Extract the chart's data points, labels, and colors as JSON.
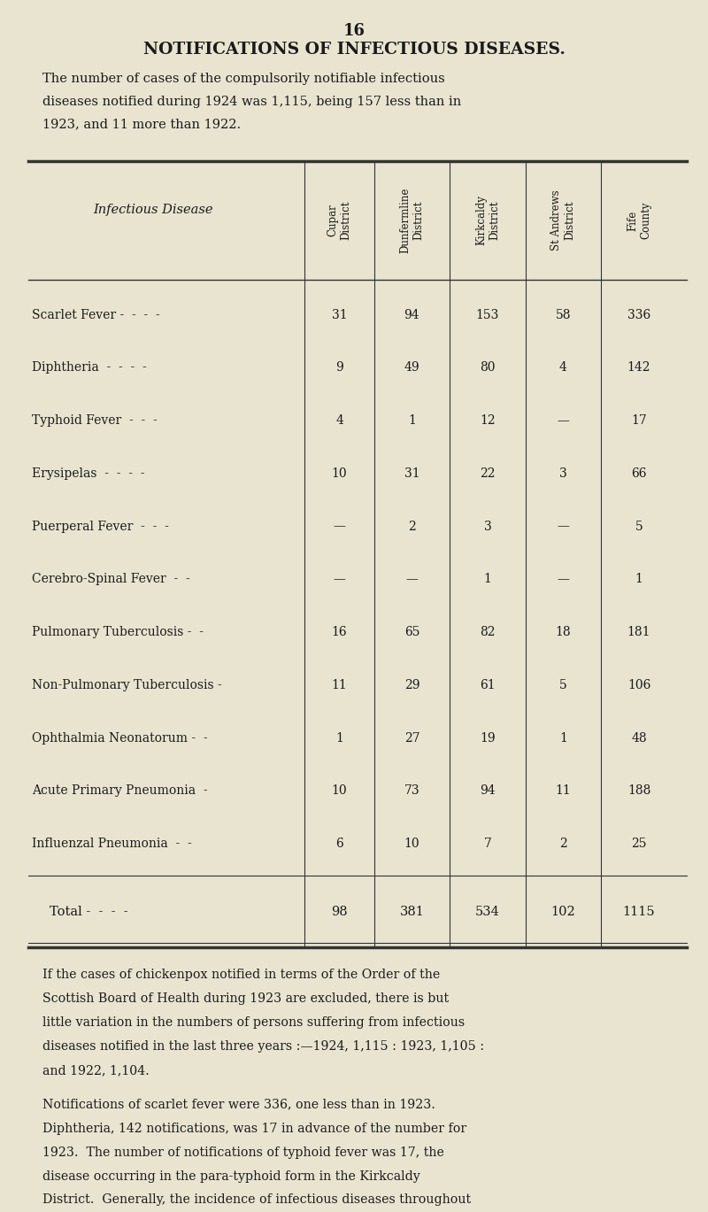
{
  "page_number": "16",
  "title": "NOTIFICATIONS OF INFECTIOUS DISEASES.",
  "intro_text": "The number of cases of the compulsorily notifiable infectious\ndiseases notified during 1924 was 1,115, being 157 less than in\n1923, and 11 more than 1922.",
  "col_headers": [
    "Infectious Disease",
    "Cupar\nDistrict",
    "Dunfermline\nDistrict",
    "Kirkcaldy\nDistrict",
    "St Andrews\nDistrict",
    "Fife\nCounty"
  ],
  "rows": [
    [
      "Scarlet Fever -  -  -  -",
      "31",
      "94",
      "153",
      "58",
      "336"
    ],
    [
      "Diphtheria  -  -  -  -",
      "9",
      "49",
      "80",
      "4",
      "142"
    ],
    [
      "Typhoid Fever  -  -  -",
      "4",
      "1",
      "12",
      "—",
      "17"
    ],
    [
      "Erysipelas  -  -  -  -",
      "10",
      "31",
      "22",
      "3",
      "66"
    ],
    [
      "Puerperal Fever  -  -  -",
      "—",
      "2",
      "3",
      "—",
      "5"
    ],
    [
      "Cerebro-Spinal Fever  -  -",
      "—",
      "—",
      "1",
      "—",
      "1"
    ],
    [
      "Pulmonary Tuberculosis -  -",
      "16",
      "65",
      "82",
      "18",
      "181"
    ],
    [
      "Non-Pulmonary Tuberculosis -",
      "11",
      "29",
      "61",
      "5",
      "106"
    ],
    [
      "Ophthalmia Neonatorum -  -",
      "1",
      "27",
      "19",
      "1",
      "48"
    ],
    [
      "Acute Primary Pneumonia  -",
      "10",
      "73",
      "94",
      "11",
      "188"
    ],
    [
      "Influenzal Pneumonia  -  -",
      "6",
      "10",
      "7",
      "2",
      "25"
    ]
  ],
  "total_row": [
    "Total -  -  -  -",
    "98",
    "381",
    "534",
    "102",
    "1115"
  ],
  "footer_text": "If the cases of chickenpox notified in terms of the Order of the\nScottish Board of Health during 1923 are excluded, there is but\nlittle variation in the numbers of persons suffering from infectious\ndiseases notified in the last three years :—1924, 1,115 : 1923, 1,105 :\nand 1922, 1,104.",
  "footer_text2": "Notifications of scarlet fever were 336, one less than in 1923.\nDiphtheria, 142 notifications, was 17 in advance of the number for\n1923.  The number of notifications of typhoid fever was 17, the\ndisease occurring in the para-typhoid form in the Kirkcaldy\nDistrict.  Generally, the incidence of infectious diseases throughout\nthe County was low.",
  "bg_color": "#e8e4d0",
  "text_color": "#1a1a1a",
  "line_color": "#333333"
}
